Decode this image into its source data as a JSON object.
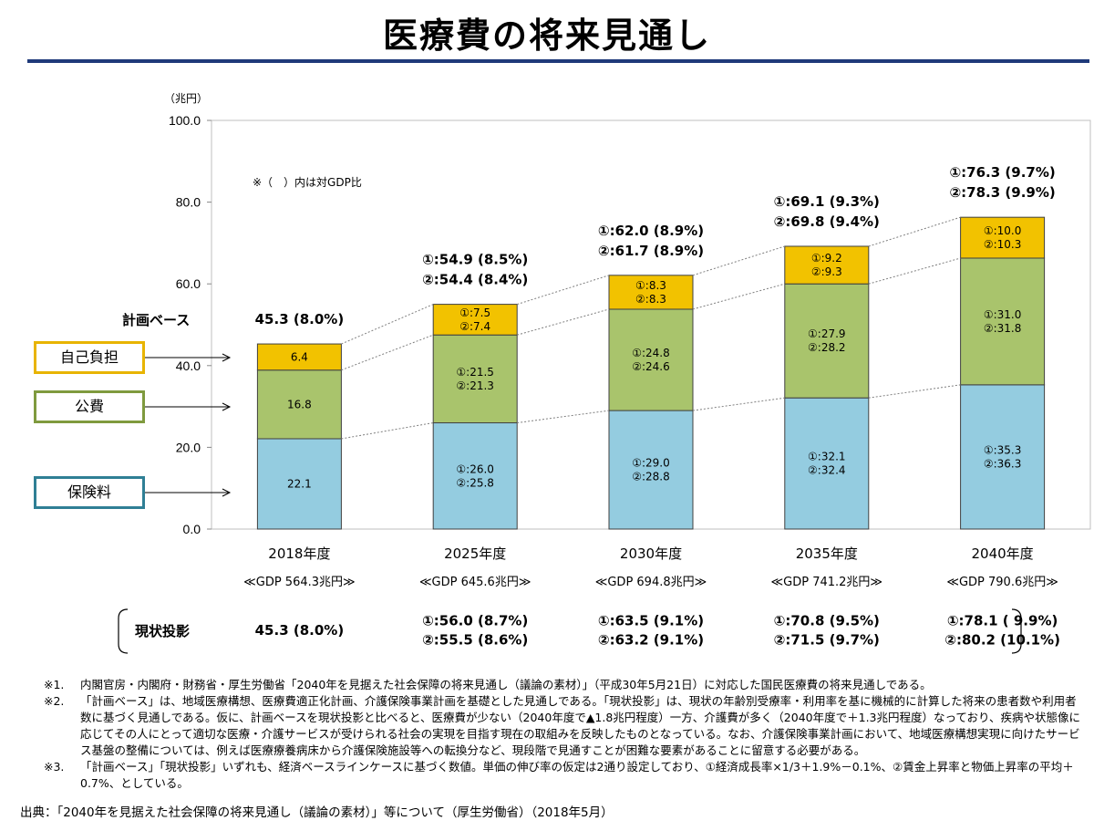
{
  "title": "医療費の将来見通し",
  "unit_label": "（兆円）",
  "gdp_note": "※（　）内は対GDP比",
  "plan_base_label": "計画ベース",
  "current_proj_label": "現状投影",
  "legend": [
    {
      "key": "self",
      "label": "自己負担",
      "color": "#f2c200",
      "border": "#e8b400"
    },
    {
      "key": "public",
      "label": "公費",
      "color": "#a9c46c",
      "border": "#7f9a3e"
    },
    {
      "key": "insurance",
      "label": "保険料",
      "color": "#94cce0",
      "border": "#2f7f95"
    }
  ],
  "chart_data": {
    "type": "bar",
    "stacked": true,
    "title": "医療費の将来見通し",
    "ylabel": "（兆円）",
    "ylim": [
      0,
      100
    ],
    "yticks": [
      "0.0",
      "20.0",
      "40.0",
      "60.0",
      "80.0",
      "100.0"
    ],
    "categories": [
      "2018年度",
      "2025年度",
      "2030年度",
      "2035年度",
      "2040年度"
    ],
    "gdp_labels": [
      "≪GDP 564.3兆円≫",
      "≪GDP 645.6兆円≫",
      "≪GDP 694.8兆円≫",
      "≪GDP 741.2兆円≫",
      "≪GDP 790.6兆円≫"
    ],
    "series": [
      {
        "name": "保険料",
        "values": [
          22.1,
          26.0,
          29.0,
          32.1,
          35.3
        ],
        "labels": [
          [
            "22.1"
          ],
          [
            "①:26.0",
            "②:25.8"
          ],
          [
            "①:29.0",
            "②:28.8"
          ],
          [
            "①:32.1",
            "②:32.4"
          ],
          [
            "①:35.3",
            "②:36.3"
          ]
        ]
      },
      {
        "name": "公費",
        "values": [
          16.8,
          21.5,
          24.8,
          27.9,
          31.0
        ],
        "labels": [
          [
            "16.8"
          ],
          [
            "①:21.5",
            "②:21.3"
          ],
          [
            "①:24.8",
            "②:24.6"
          ],
          [
            "①:27.9",
            "②:28.2"
          ],
          [
            "①:31.0",
            "②:31.8"
          ]
        ]
      },
      {
        "name": "自己負担",
        "values": [
          6.4,
          7.5,
          8.3,
          9.2,
          10.0
        ],
        "labels": [
          [
            "6.4"
          ],
          [
            "①:7.5",
            "②:7.4"
          ],
          [
            "①:8.3",
            "②:8.3"
          ],
          [
            "①:9.2",
            "②:9.3"
          ],
          [
            "①:10.0",
            "②:10.3"
          ]
        ]
      }
    ],
    "totals": [
      [
        "45.3 (8.0%)"
      ],
      [
        "①:54.9 (8.5%)",
        "②:54.4 (8.4%)"
      ],
      [
        "①:62.0 (8.9%)",
        "②:61.7 (8.9%)"
      ],
      [
        "①:69.1 (9.3%)",
        "②:69.8 (9.4%)"
      ],
      [
        "①:76.3 (9.7%)",
        "②:78.3 (9.9%)"
      ]
    ],
    "current_projection": [
      [
        "45.3 (8.0%)"
      ],
      [
        "①:56.0 (8.7%)",
        "②:55.5 (8.6%)"
      ],
      [
        "①:63.5 (9.1%)",
        "②:63.2 (9.1%)"
      ],
      [
        "①:70.8 (9.5%)",
        "②:71.5 (9.7%)"
      ],
      [
        "①:78.1 ( 9.9%)",
        "②:80.2 (10.1%)"
      ]
    ]
  },
  "notes": [
    {
      "mark": "※1.",
      "text": "内閣官房・内閣府・財務省・厚生労働省「2040年を見据えた社会保障の将来見通し（議論の素材）」（平成30年5月21日）に対応した国民医療費の将来見通しである。"
    },
    {
      "mark": "※2.",
      "text": "「計画ベース」は、地域医療構想、医療費適正化計画、介護保険事業計画を基礎とした見通しである。「現状投影」は、現状の年齢別受療率・利用率を基に機械的に計算した将来の患者数や利用者数に基づく見通しである。仮に、計画ベースを現状投影と比べると、医療費が少ない（2040年度で▲1.8兆円程度）一方、介護費が多く（2040年度で＋1.3兆円程度）なっており、疾病や状態像に応じてその人にとって適切な医療・介護サービスが受けられる社会の実現を目指す現在の取組みを反映したものとなっている。なお、介護保険事業計画において、地域医療構想実現に向けたサービス基盤の整備については、例えば医療療養病床から介護保険施設等への転換分など、現段階で見通すことが困難な要素があることに留意する必要がある。"
    },
    {
      "mark": "※3.",
      "text": "「計画ベース」「現状投影」いずれも、経済ベースラインケースに基づく数値。単価の伸び率の仮定は2通り設定しており、①経済成長率×1/3＋1.9%－0.1%、②賃金上昇率と物価上昇率の平均＋0.7%、としている。"
    }
  ],
  "source": "出典：「2040年を見据えた社会保障の将来見通し（議論の素材）」等について（厚生労働省）（2018年5月）"
}
